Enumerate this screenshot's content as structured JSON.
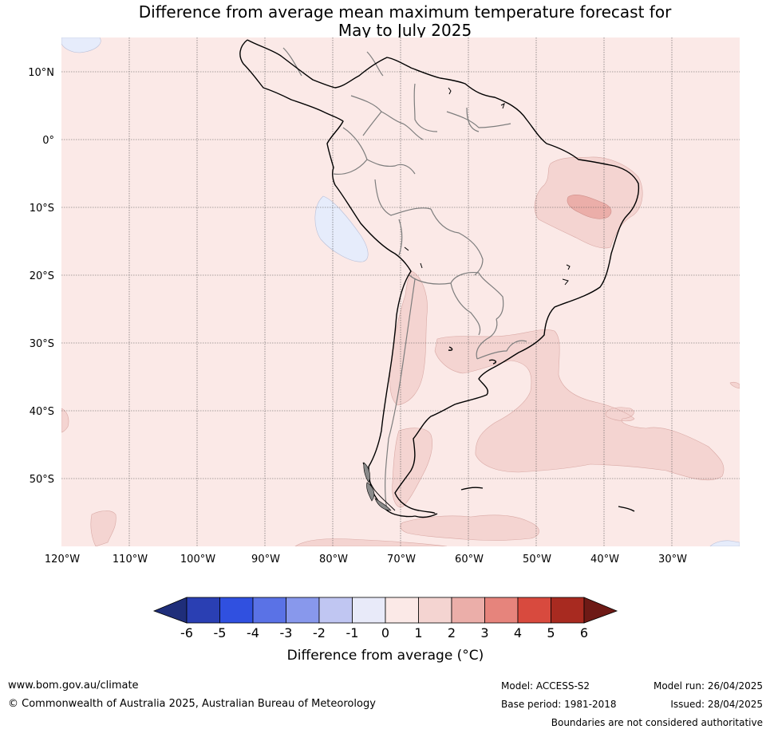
{
  "title": {
    "line1": "Difference from average mean maximum temperature forecast for",
    "line2": "May to July 2025"
  },
  "map": {
    "longitude_labels": [
      "120°W",
      "110°W",
      "100°W",
      "90°W",
      "80°W",
      "70°W",
      "60°W",
      "50°W",
      "40°W",
      "30°W"
    ],
    "latitude_labels": [
      "10°N",
      "0°",
      "10°S",
      "20°S",
      "30°S",
      "40°S",
      "50°S"
    ],
    "colors": {
      "background_class": "#fbe9e7",
      "class_1_2": "#f4d4d1",
      "class_2_3": "#ebaea9",
      "class_neg1_0": "#e6ecfb"
    }
  },
  "colorbar": {
    "ticks": [
      "-6",
      "-5",
      "-4",
      "-3",
      "-2",
      "-1",
      "0",
      "1",
      "2",
      "3",
      "4",
      "5",
      "6"
    ],
    "colors": [
      "#1f2e7a",
      "#2a3fb3",
      "#3050e0",
      "#5a72e6",
      "#8898ec",
      "#c0c6f2",
      "#e8eaf9",
      "#fbe9e7",
      "#f4d4d1",
      "#ebaea9",
      "#e6847c",
      "#d84a3e",
      "#a82a20",
      "#6e1a16"
    ],
    "label": "Difference from average (°C)"
  },
  "footer": {
    "website": "www.bom.gov.au/climate",
    "copyright": "© Commonwealth of Australia 2025, Australian Bureau of Meteorology",
    "model": "Model: ACCESS-S2",
    "base_period": "Base period: 1981-2018",
    "model_run": "Model run: 26/04/2025",
    "issued": "Issued: 28/04/2025",
    "disclaimer": "Boundaries are not considered authoritative"
  }
}
